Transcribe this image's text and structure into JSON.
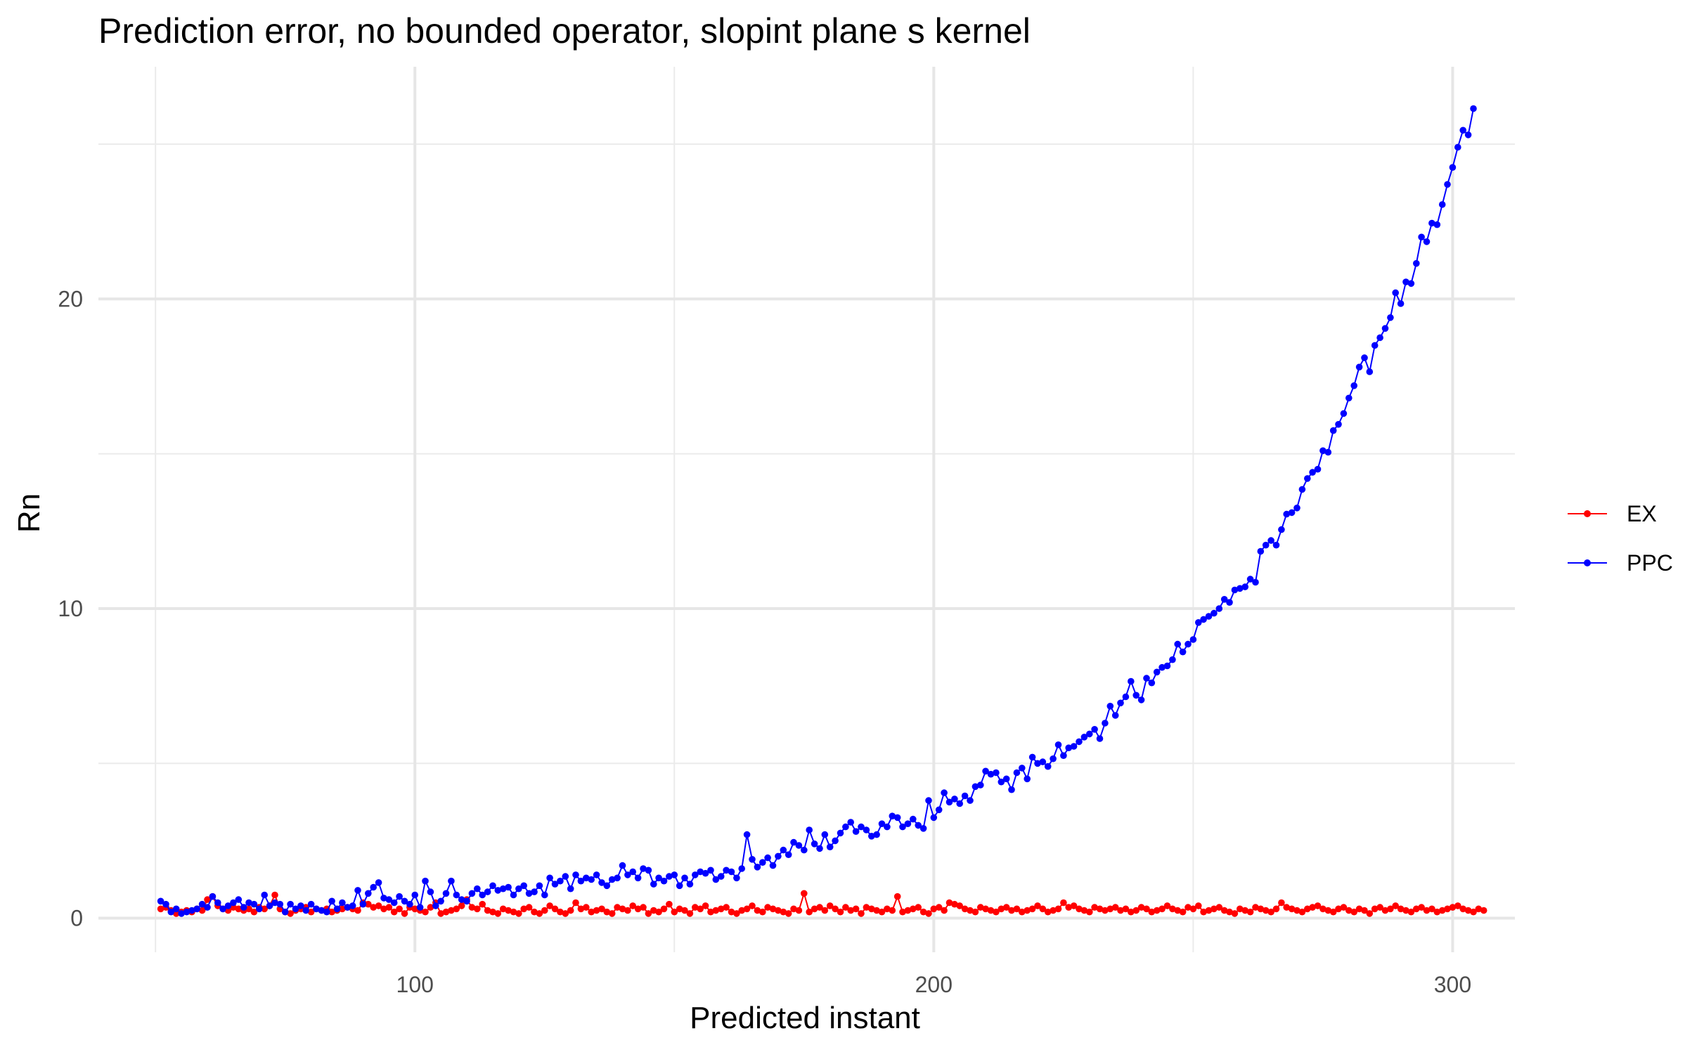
{
  "chart_data": {
    "type": "line",
    "title": "Prediction error, no bounded operator, slopint plane s kernel",
    "xlabel": "Predicted instant",
    "ylabel": "Rn",
    "xlim": [
      39,
      312
    ],
    "ylim": [
      -1.1,
      27.5
    ],
    "xticks": [
      100,
      200,
      300
    ],
    "yticks": [
      0,
      10,
      20
    ],
    "grid": true,
    "legend_position": "right",
    "x_start": 51,
    "x_end": 300,
    "series": [
      {
        "name": "EX",
        "color": "#ff0000",
        "values": [
          0.3,
          0.35,
          0.25,
          0.15,
          0.2,
          0.25,
          0.2,
          0.3,
          0.25,
          0.6,
          0.7,
          0.4,
          0.3,
          0.25,
          0.35,
          0.3,
          0.25,
          0.3,
          0.2,
          0.35,
          0.3,
          0.4,
          0.75,
          0.3,
          0.2,
          0.15,
          0.25,
          0.3,
          0.35,
          0.2,
          0.3,
          0.25,
          0.3,
          0.2,
          0.25,
          0.3,
          0.35,
          0.3,
          0.25,
          0.5,
          0.45,
          0.35,
          0.4,
          0.3,
          0.35,
          0.2,
          0.3,
          0.15,
          0.35,
          0.3,
          0.25,
          0.2,
          0.35,
          0.5,
          0.15,
          0.2,
          0.25,
          0.3,
          0.4,
          0.6,
          0.35,
          0.3,
          0.45,
          0.25,
          0.2,
          0.15,
          0.3,
          0.25,
          0.2,
          0.15,
          0.3,
          0.35,
          0.2,
          0.15,
          0.25,
          0.4,
          0.3,
          0.2,
          0.15,
          0.25,
          0.5,
          0.3,
          0.35,
          0.2,
          0.25,
          0.3,
          0.2,
          0.15,
          0.35,
          0.3,
          0.25,
          0.4,
          0.3,
          0.35,
          0.15,
          0.25,
          0.2,
          0.3,
          0.45,
          0.2,
          0.3,
          0.25,
          0.15,
          0.35,
          0.3,
          0.4,
          0.2,
          0.25,
          0.3,
          0.35,
          0.2,
          0.15,
          0.25,
          0.3,
          0.4,
          0.25,
          0.2,
          0.35,
          0.3,
          0.25,
          0.2,
          0.15,
          0.3,
          0.25,
          0.8,
          0.2,
          0.3,
          0.35,
          0.25,
          0.4,
          0.3,
          0.2,
          0.35,
          0.25,
          0.3,
          0.15,
          0.35,
          0.3,
          0.25,
          0.2,
          0.3,
          0.25,
          0.7,
          0.2,
          0.25,
          0.3,
          0.35,
          0.2,
          0.15,
          0.3,
          0.35,
          0.25,
          0.5,
          0.45,
          0.4,
          0.3,
          0.25,
          0.2,
          0.35,
          0.3,
          0.25,
          0.2,
          0.3,
          0.35,
          0.25,
          0.3,
          0.2,
          0.25,
          0.3,
          0.4,
          0.3,
          0.2,
          0.25,
          0.3,
          0.5,
          0.35,
          0.4,
          0.3,
          0.25,
          0.2,
          0.35,
          0.3,
          0.25,
          0.3,
          0.35,
          0.25,
          0.3,
          0.2,
          0.25,
          0.35,
          0.3,
          0.2,
          0.25,
          0.3,
          0.4,
          0.3,
          0.25,
          0.2,
          0.35,
          0.3,
          0.4,
          0.2,
          0.25,
          0.3,
          0.35,
          0.25,
          0.2,
          0.15,
          0.3,
          0.25,
          0.2,
          0.35,
          0.3,
          0.25,
          0.2,
          0.3,
          0.5,
          0.35,
          0.3,
          0.25,
          0.2,
          0.3,
          0.35,
          0.4,
          0.3,
          0.25,
          0.2,
          0.3,
          0.35,
          0.25,
          0.2,
          0.3,
          0.25,
          0.15,
          0.3,
          0.35,
          0.25,
          0.3,
          0.4,
          0.3,
          0.25,
          0.2,
          0.3,
          0.35,
          0.25,
          0.3,
          0.2,
          0.25,
          0.3,
          0.35,
          0.4,
          0.3,
          0.25,
          0.2,
          0.3,
          0.25
        ]
      },
      {
        "name": "PPC",
        "color": "#0000ff",
        "values": [
          0.55,
          0.45,
          0.2,
          0.3,
          0.15,
          0.2,
          0.25,
          0.3,
          0.45,
          0.35,
          0.7,
          0.5,
          0.3,
          0.4,
          0.5,
          0.6,
          0.35,
          0.5,
          0.45,
          0.3,
          0.75,
          0.4,
          0.5,
          0.45,
          0.2,
          0.45,
          0.3,
          0.4,
          0.25,
          0.45,
          0.3,
          0.25,
          0.2,
          0.55,
          0.3,
          0.5,
          0.35,
          0.4,
          0.9,
          0.45,
          0.8,
          1.0,
          1.15,
          0.65,
          0.6,
          0.5,
          0.7,
          0.55,
          0.45,
          0.75,
          0.35,
          1.2,
          0.85,
          0.4,
          0.55,
          0.8,
          1.2,
          0.75,
          0.6,
          0.55,
          0.8,
          0.95,
          0.75,
          0.85,
          1.05,
          0.9,
          0.95,
          1.0,
          0.75,
          0.95,
          1.05,
          0.8,
          0.85,
          1.05,
          0.75,
          1.3,
          1.1,
          1.2,
          1.35,
          0.95,
          1.4,
          1.2,
          1.3,
          1.25,
          1.4,
          1.15,
          1.05,
          1.25,
          1.3,
          1.7,
          1.4,
          1.5,
          1.3,
          1.6,
          1.55,
          1.1,
          1.3,
          1.2,
          1.35,
          1.4,
          1.05,
          1.3,
          1.1,
          1.4,
          1.5,
          1.45,
          1.55,
          1.25,
          1.35,
          1.55,
          1.5,
          1.3,
          1.6,
          2.7,
          1.9,
          1.65,
          1.8,
          1.95,
          1.7,
          2.0,
          2.2,
          2.05,
          2.45,
          2.35,
          2.2,
          2.85,
          2.4,
          2.25,
          2.7,
          2.3,
          2.5,
          2.75,
          2.95,
          3.1,
          2.8,
          2.95,
          2.85,
          2.65,
          2.7,
          3.05,
          2.95,
          3.3,
          3.25,
          2.95,
          3.05,
          3.2,
          3.0,
          2.9,
          3.8,
          3.25,
          3.5,
          4.05,
          3.75,
          3.85,
          3.7,
          3.95,
          3.8,
          4.25,
          4.3,
          4.75,
          4.65,
          4.7,
          4.4,
          4.5,
          4.15,
          4.7,
          4.85,
          4.5,
          5.2,
          5.0,
          5.05,
          4.9,
          5.15,
          5.6,
          5.25,
          5.5,
          5.55,
          5.7,
          5.85,
          5.95,
          6.1,
          5.8,
          6.3,
          6.85,
          6.55,
          6.95,
          7.15,
          7.65,
          7.2,
          7.05,
          7.75,
          7.6,
          7.95,
          8.1,
          8.15,
          8.35,
          8.85,
          8.6,
          8.85,
          9.0,
          9.55,
          9.65,
          9.75,
          9.85,
          10.0,
          10.3,
          10.2,
          10.6,
          10.65,
          10.7,
          10.95,
          10.85,
          11.85,
          12.05,
          12.2,
          12.05,
          12.55,
          13.05,
          13.1,
          13.25,
          13.85,
          14.2,
          14.4,
          14.5,
          15.1,
          15.05,
          15.75,
          15.95,
          16.3,
          16.8,
          17.2,
          17.8,
          18.1,
          17.65,
          18.5,
          18.75,
          19.05,
          19.4,
          20.2,
          19.85,
          20.55,
          20.5,
          21.15,
          22.0,
          21.85,
          22.45,
          22.4,
          23.05,
          23.7,
          24.25,
          24.9,
          25.45,
          25.3,
          26.15
        ]
      }
    ]
  }
}
